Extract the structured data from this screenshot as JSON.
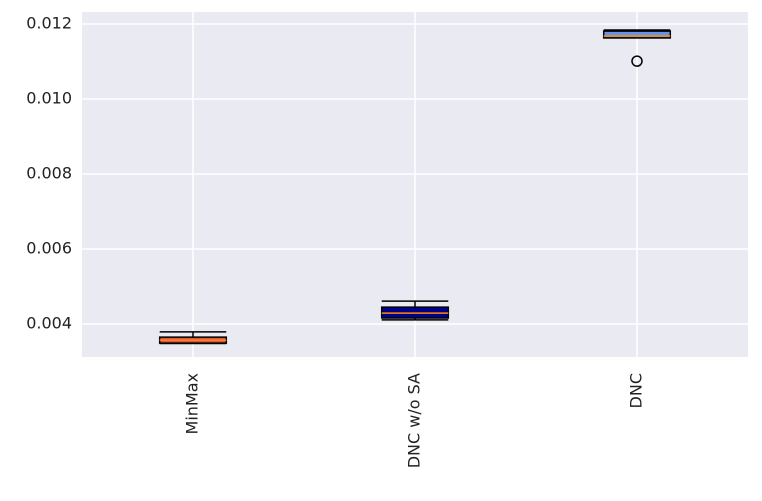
{
  "chart_data": {
    "type": "box",
    "categories": [
      "MinMax",
      "DNC w/o SA",
      "DNC"
    ],
    "boxes": [
      {
        "whislo": 0.00348,
        "q1": 0.00349,
        "med": 0.00357,
        "q3": 0.00365,
        "whishi": 0.00379,
        "fliers": [],
        "color": "#d9534f"
      },
      {
        "whislo": 0.00411,
        "q1": 0.00416,
        "med": 0.00429,
        "q3": 0.00445,
        "whishi": 0.00461,
        "fliers": [],
        "color": "#00008b"
      },
      {
        "whislo": 0.01163,
        "q1": 0.01163,
        "med": 0.01168,
        "q3": 0.01181,
        "whishi": 0.01184,
        "fliers": [
          0.01101
        ],
        "color": "#6495ed"
      }
    ],
    "median_color": "#ff8c00",
    "ylim": [
      0.00312,
      0.01232
    ],
    "yticks": [
      {
        "value": 0.004,
        "label": "0.004"
      },
      {
        "value": 0.006,
        "label": "0.006"
      },
      {
        "value": 0.008,
        "label": "0.008"
      },
      {
        "value": 0.01,
        "label": "0.010"
      },
      {
        "value": 0.012,
        "label": "0.012"
      }
    ],
    "grid": true
  }
}
